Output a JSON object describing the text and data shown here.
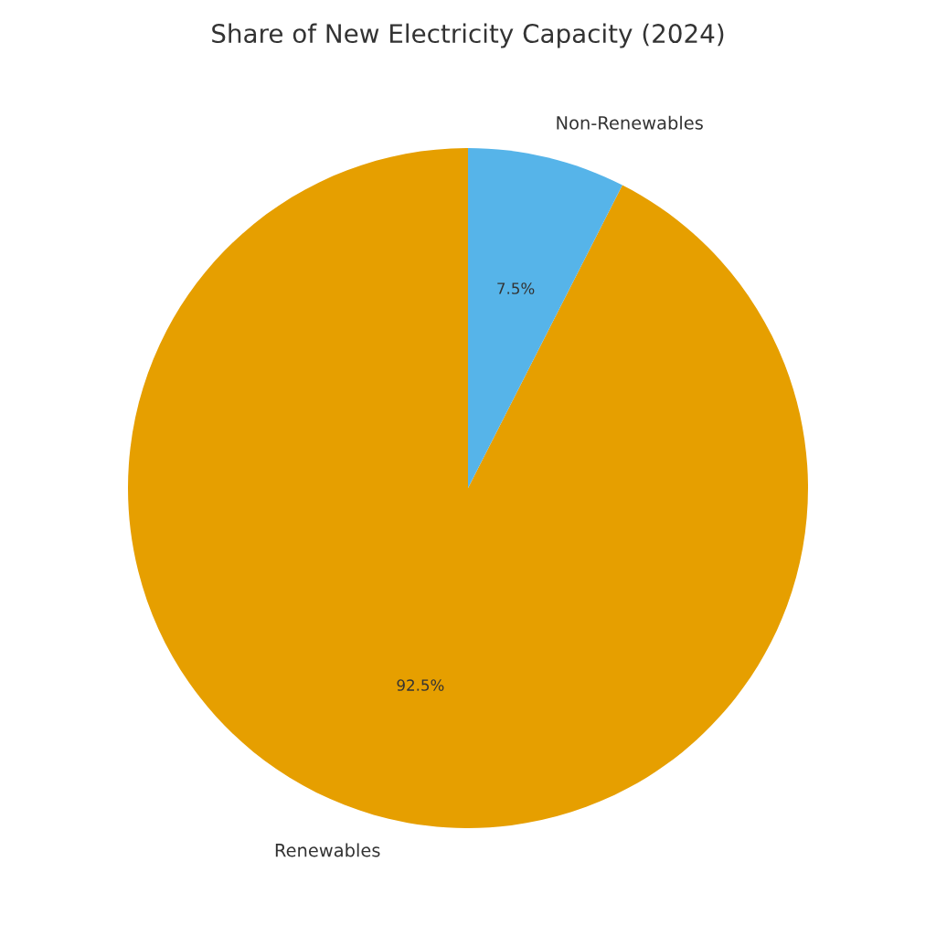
{
  "chart_data": {
    "type": "pie",
    "title": "Share of New Electricity Capacity (2024)",
    "categories": [
      "Renewables",
      "Non-Renewables"
    ],
    "values": [
      92.5,
      7.5
    ],
    "colors": [
      "#e69f00",
      "#56b4e9"
    ],
    "value_labels": [
      "92.5%",
      "7.5%"
    ],
    "legend": false
  }
}
